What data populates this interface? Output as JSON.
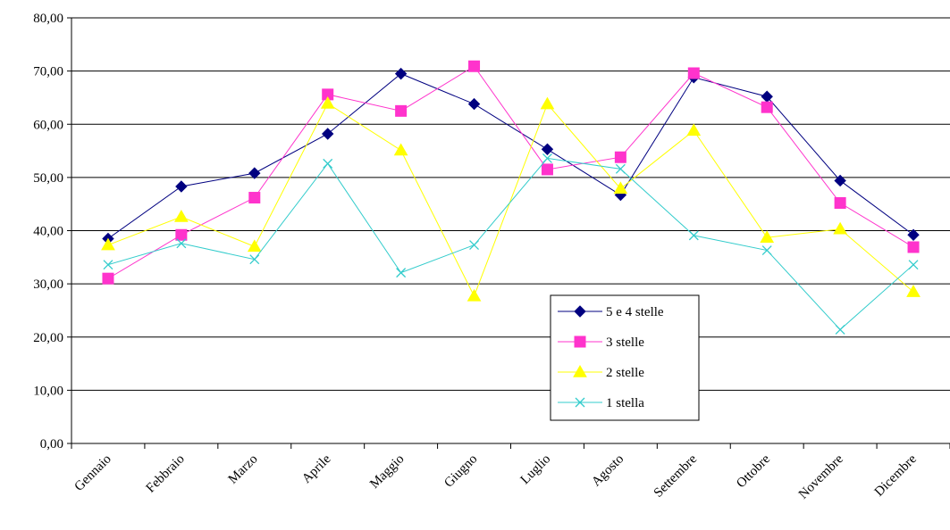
{
  "chart_data": {
    "type": "line",
    "title": "",
    "xlabel": "",
    "ylabel": "",
    "ylim": [
      0,
      80
    ],
    "y_ticks": [
      "0,00",
      "10,00",
      "20,00",
      "30,00",
      "40,00",
      "50,00",
      "60,00",
      "70,00",
      "80,00"
    ],
    "categories": [
      "Gennaio",
      "Febbraio",
      "Marzo",
      "Aprile",
      "Maggio",
      "Giugno",
      "Luglio",
      "Agosto",
      "Settembre",
      "Ottobre",
      "Novembre",
      "Dicembre"
    ],
    "grid": "horizontal",
    "legend_position": "bottom-right (inside plot)",
    "series": [
      {
        "name": "5 e 4 stelle",
        "color": "#000080",
        "marker": "diamond",
        "values": [
          38.5,
          48.3,
          50.8,
          58.2,
          69.5,
          63.8,
          55.3,
          46.7,
          68.8,
          65.2,
          49.4,
          39.2
        ]
      },
      {
        "name": "3 stelle",
        "color": "#FF33CC",
        "marker": "square",
        "values": [
          31.0,
          39.2,
          46.2,
          65.6,
          62.5,
          70.9,
          51.5,
          53.8,
          69.6,
          63.2,
          45.2,
          36.9
        ]
      },
      {
        "name": "2 stelle",
        "color": "#FFFF00",
        "marker": "triangle",
        "values": [
          37.3,
          42.6,
          37.0,
          63.9,
          55.1,
          27.7,
          63.8,
          47.9,
          58.8,
          38.7,
          40.3,
          28.5
        ]
      },
      {
        "name": "1 stella",
        "color": "#33CCCC",
        "marker": "x",
        "values": [
          33.6,
          37.6,
          34.6,
          52.6,
          32.1,
          37.3,
          53.6,
          51.6,
          39.1,
          36.3,
          21.4,
          33.6
        ]
      }
    ]
  }
}
